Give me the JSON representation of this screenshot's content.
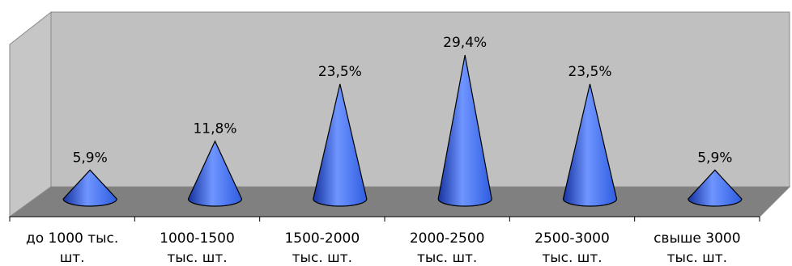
{
  "chart_data": {
    "type": "bar",
    "style": "3d-cone",
    "categories": [
      [
        "до 1000 тыс.",
        "шт."
      ],
      [
        "1000-1500",
        "тыс. шт."
      ],
      [
        "1500-2000",
        "тыс. шт."
      ],
      [
        "2000-2500",
        "тыс. шт."
      ],
      [
        "2500-3000",
        "тыс. шт."
      ],
      [
        "свыше 3000",
        "тыс. шт."
      ]
    ],
    "values": [
      5.9,
      11.8,
      23.5,
      29.4,
      23.5,
      5.9
    ],
    "data_labels": [
      "5,9%",
      "11,8%",
      "23,5%",
      "29,4%",
      "23,5%",
      "5,9%"
    ],
    "unit": "%",
    "title": "",
    "xlabel": "",
    "ylabel": "",
    "ylim": [
      0,
      35
    ],
    "grid": false,
    "legend": "none",
    "colors": {
      "cone_fill": "#2f5de0",
      "cone_highlight": "#6f95ff",
      "cone_shadow": "#1634a0",
      "back_wall": "#c0c0c0",
      "side_wall": "#c6c6c6",
      "floor": "#808080",
      "edges": "#888888"
    }
  }
}
